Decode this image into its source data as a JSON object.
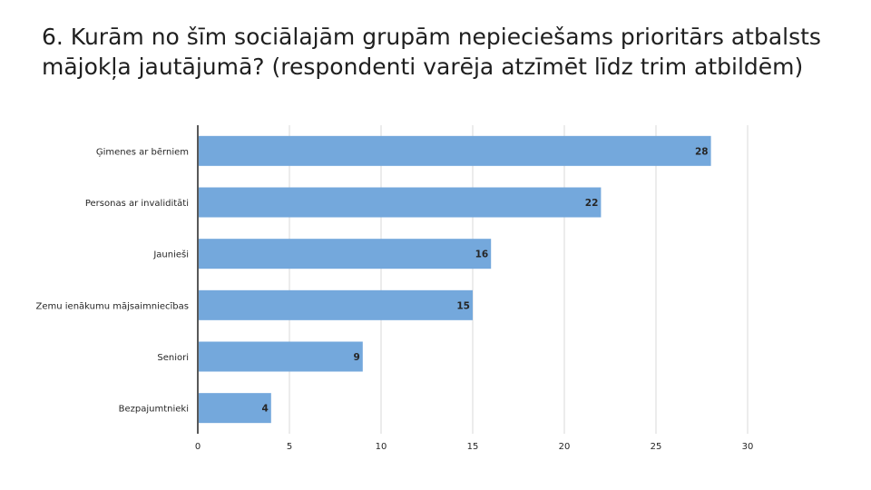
{
  "title": "6. Kurām no šīm sociālajām grupām nepieciešams prioritārs atbalsts mājokļa jautājumā? (respondenti varēja atzīmēt līdz trim atbildēm)",
  "colors": {
    "bar": "#74a8dc",
    "grid": "#d9d9d9",
    "axis": "#595959"
  },
  "chart_data": {
    "type": "bar",
    "orientation": "horizontal",
    "categories": [
      "Ģimenes ar bērniem",
      "Personas ar invaliditāti",
      "Jaunieši",
      "Zemu ienākumu mājsaimniecības",
      "Seniori",
      "Bezpajumtnieki"
    ],
    "values": [
      28,
      22,
      16,
      15,
      9,
      4
    ],
    "xlim": [
      0,
      30
    ],
    "xticks": [
      0,
      5,
      10,
      15,
      20,
      25,
      30
    ],
    "grid": true,
    "data_labels": true
  }
}
